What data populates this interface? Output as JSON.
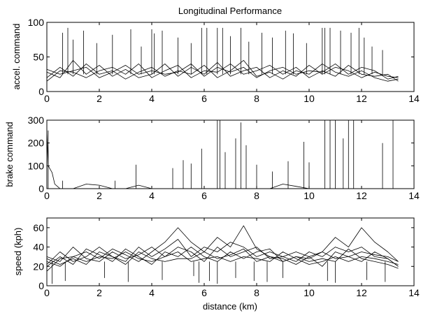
{
  "title": "Longitudinal Performance",
  "chart_data": [
    {
      "type": "line",
      "xlabel": "",
      "ylabel": "accel. command",
      "xlim": [
        0,
        14
      ],
      "ylim": [
        0,
        100
      ],
      "xticks": [
        0,
        2,
        4,
        6,
        8,
        10,
        12,
        14
      ],
      "yticks": [
        0,
        50,
        100
      ],
      "x": [
        0.0,
        0.5,
        1.0,
        1.5,
        2.0,
        2.5,
        3.0,
        3.5,
        4.0,
        4.5,
        5.0,
        5.5,
        6.0,
        6.5,
        7.0,
        7.5,
        8.0,
        8.5,
        9.0,
        9.5,
        10.0,
        10.5,
        11.0,
        11.5,
        12.0,
        12.5,
        13.0,
        13.4
      ],
      "series": [
        {
          "values": [
            20,
            35,
            22,
            40,
            25,
            30,
            18,
            28,
            35,
            22,
            30,
            25,
            38,
            20,
            30,
            45,
            22,
            28,
            18,
            30,
            25,
            40,
            28,
            22,
            30,
            20,
            15,
            18
          ]
        },
        {
          "values": [
            28,
            20,
            45,
            25,
            38,
            22,
            32,
            20,
            25,
            40,
            22,
            35,
            25,
            42,
            22,
            30,
            35,
            20,
            30,
            22,
            38,
            25,
            35,
            30,
            20,
            28,
            22,
            20
          ]
        },
        {
          "values": [
            15,
            30,
            28,
            20,
            30,
            35,
            25,
            40,
            20,
            30,
            38,
            20,
            30,
            28,
            40,
            25,
            30,
            38,
            25,
            35,
            20,
            30,
            22,
            38,
            25,
            22,
            25,
            15
          ]
        },
        {
          "values": [
            32,
            25,
            30,
            35,
            20,
            28,
            38,
            25,
            30,
            25,
            28,
            40,
            22,
            35,
            28,
            35,
            20,
            30,
            35,
            25,
            30,
            28,
            40,
            25,
            35,
            30,
            18,
            22
          ]
        }
      ],
      "peaks": {
        "x": [
          0.6,
          0.8,
          1.0,
          1.4,
          1.9,
          2.5,
          3.2,
          3.6,
          4.0,
          4.1,
          4.4,
          5.0,
          5.5,
          5.9,
          6.1,
          6.5,
          6.7,
          7.0,
          7.4,
          7.7,
          8.2,
          8.6,
          9.1,
          9.4,
          9.9,
          10.5,
          10.6,
          10.8,
          11.2,
          11.6,
          11.9,
          12.1,
          12.4,
          12.8
        ],
        "values": [
          85,
          92,
          75,
          88,
          70,
          82,
          90,
          65,
          90,
          84,
          88,
          78,
          70,
          92,
          92,
          92,
          92,
          80,
          92,
          72,
          85,
          78,
          88,
          84,
          70,
          92,
          92,
          92,
          88,
          85,
          92,
          78,
          65,
          60
        ]
      }
    },
    {
      "type": "line",
      "xlabel": "",
      "ylabel": "brake command",
      "xlim": [
        0,
        14
      ],
      "ylim": [
        0,
        300
      ],
      "xticks": [
        0,
        2,
        4,
        6,
        8,
        10,
        12,
        14
      ],
      "yticks": [
        0,
        100,
        200,
        300
      ],
      "x": [
        0.0,
        0.05,
        0.1,
        0.2,
        0.3,
        0.4,
        0.5,
        1.0,
        1.5,
        2.0,
        2.5,
        3.0,
        3.5,
        4.0,
        4.5,
        5.0,
        5.5,
        6.0,
        6.5,
        7.0,
        7.5,
        8.0,
        8.5,
        9.0,
        9.5,
        10.0,
        10.5,
        11.0,
        11.5,
        12.0,
        12.5,
        13.0,
        13.4
      ],
      "series": [
        {
          "values": [
            250,
            100,
            90,
            70,
            20,
            10,
            0,
            0,
            20,
            15,
            0,
            0,
            15,
            0,
            0,
            0,
            0,
            0,
            0,
            0,
            0,
            0,
            0,
            20,
            10,
            0,
            0,
            0,
            0,
            0,
            0,
            0,
            0
          ]
        }
      ],
      "spikes": {
        "x": [
          0.05,
          0.6,
          2.6,
          3.4,
          4.8,
          5.2,
          5.5,
          5.9,
          6.5,
          6.6,
          6.8,
          7.2,
          7.4,
          7.6,
          8.0,
          8.6,
          9.2,
          9.8,
          10.0,
          10.6,
          10.8,
          11.0,
          11.3,
          11.5,
          11.7,
          12.8,
          13.2
        ],
        "values": [
          255,
          35,
          35,
          105,
          90,
          125,
          110,
          175,
          300,
          300,
          160,
          220,
          290,
          190,
          105,
          75,
          120,
          205,
          115,
          300,
          300,
          300,
          220,
          300,
          300,
          200,
          300
        ]
      }
    },
    {
      "type": "line",
      "xlabel": "distance (km)",
      "ylabel": "speed (kph)",
      "xlim": [
        0,
        14
      ],
      "ylim": [
        0,
        70
      ],
      "xticks": [
        0,
        2,
        4,
        6,
        8,
        10,
        12,
        14
      ],
      "yticks": [
        0,
        20,
        40,
        60
      ],
      "x": [
        0.0,
        0.5,
        1.0,
        1.5,
        2.0,
        2.5,
        3.0,
        3.5,
        4.0,
        4.5,
        5.0,
        5.5,
        6.0,
        6.5,
        7.0,
        7.5,
        8.0,
        8.5,
        9.0,
        9.5,
        10.0,
        10.5,
        11.0,
        11.5,
        12.0,
        12.5,
        13.0,
        13.4
      ],
      "series": [
        {
          "values": [
            15,
            28,
            30,
            35,
            28,
            38,
            32,
            25,
            35,
            45,
            60,
            45,
            35,
            50,
            40,
            62,
            38,
            30,
            25,
            30,
            28,
            35,
            50,
            40,
            60,
            45,
            35,
            25
          ]
        },
        {
          "values": [
            22,
            35,
            25,
            30,
            40,
            30,
            25,
            40,
            30,
            38,
            48,
            30,
            40,
            35,
            45,
            40,
            30,
            35,
            30,
            25,
            35,
            30,
            40,
            35,
            40,
            30,
            28,
            20
          ]
        },
        {
          "values": [
            25,
            20,
            30,
            25,
            30,
            28,
            35,
            28,
            25,
            30,
            35,
            25,
            28,
            30,
            25,
            30,
            28,
            25,
            35,
            28,
            22,
            25,
            30,
            25,
            30,
            28,
            25,
            22
          ]
        },
        {
          "values": [
            30,
            25,
            40,
            28,
            25,
            35,
            28,
            32,
            40,
            30,
            40,
            35,
            25,
            40,
            30,
            35,
            40,
            28,
            30,
            35,
            30,
            20,
            35,
            30,
            35,
            32,
            30,
            25
          ]
        },
        {
          "values": [
            20,
            30,
            22,
            38,
            32,
            25,
            38,
            30,
            22,
            35,
            30,
            40,
            30,
            25,
            35,
            28,
            35,
            38,
            25,
            30,
            25,
            28,
            25,
            38,
            28,
            25,
            22,
            18
          ]
        },
        {
          "values": [
            28,
            22,
            28,
            22,
            35,
            30,
            22,
            35,
            28,
            25,
            28,
            28,
            35,
            28,
            32,
            38,
            25,
            30,
            28,
            22,
            30,
            35,
            28,
            30,
            25,
            35,
            28,
            20
          ]
        }
      ],
      "dips": {
        "x": [
          0.2,
          0.7,
          2.2,
          3.1,
          4.4,
          5.6,
          5.8,
          6.2,
          6.5,
          7.2,
          7.9,
          8.4,
          9.0,
          10.7,
          11.0,
          12.2,
          12.9
        ],
        "values": [
          2,
          5,
          8,
          4,
          6,
          10,
          3,
          5,
          2,
          8,
          5,
          4,
          8,
          5,
          3,
          6,
          4
        ]
      }
    }
  ]
}
